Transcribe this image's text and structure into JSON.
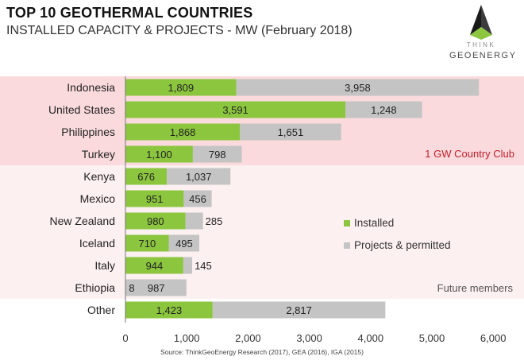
{
  "header": {
    "title": "TOP 10 GEOTHERMAL COUNTRIES",
    "subtitle": "INSTALLED CAPACITY & PROJECTS - MW (February 2018)"
  },
  "logo": {
    "line1": "THINK",
    "line2": "GEOENERGY"
  },
  "source": "Source: ThinkGeoEnergy Research (2017), GEA (2016), IGA (2015)",
  "chart_data": {
    "type": "bar",
    "orientation": "horizontal",
    "stacked": true,
    "title": "TOP 10 GEOTHERMAL COUNTRIES",
    "subtitle": "INSTALLED CAPACITY & PROJECTS - MW (February 2018)",
    "categories": [
      "Indonesia",
      "United States",
      "Philippines",
      "Turkey",
      "Kenya",
      "Mexico",
      "New Zealand",
      "Iceland",
      "Italy",
      "Ethiopia",
      "Other"
    ],
    "series": [
      {
        "name": "Installed",
        "color": "#8cc63f",
        "values": [
          1809,
          3591,
          1868,
          1100,
          676,
          951,
          980,
          710,
          944,
          8,
          1423
        ]
      },
      {
        "name": "Projects & permitted",
        "color": "#c4c4c4",
        "values": [
          3958,
          1248,
          1651,
          798,
          1037,
          456,
          285,
          495,
          145,
          987,
          2817
        ]
      }
    ],
    "data_labels": {
      "Installed": [
        "1,809",
        "3,591",
        "1,868",
        "1,100",
        "676",
        "951",
        "980",
        "710",
        "944",
        "8",
        "1,423"
      ],
      "Projects & permitted": [
        "3,958",
        "1,248",
        "1,651",
        "798",
        "1,037",
        "456",
        "285",
        "495",
        "145",
        "987",
        "2,817"
      ]
    },
    "xlim": [
      0,
      6000
    ],
    "xticks": [
      0,
      1000,
      2000,
      3000,
      4000,
      5000,
      6000
    ],
    "xtick_labels": [
      "0",
      "1,000",
      "2,000",
      "3,000",
      "4,000",
      "5,000",
      "6,000"
    ],
    "legend_position": "right",
    "grid": false,
    "bands": [
      {
        "label": "1 GW Country Club",
        "color": "#fadadd",
        "label_color": "#c0202a",
        "from": "Indonesia",
        "to": "Turkey"
      },
      {
        "label": "Future members",
        "color": "#fdf0f1",
        "label_color": "#555555",
        "from": "Kenya",
        "to": "Ethiopia"
      }
    ]
  }
}
